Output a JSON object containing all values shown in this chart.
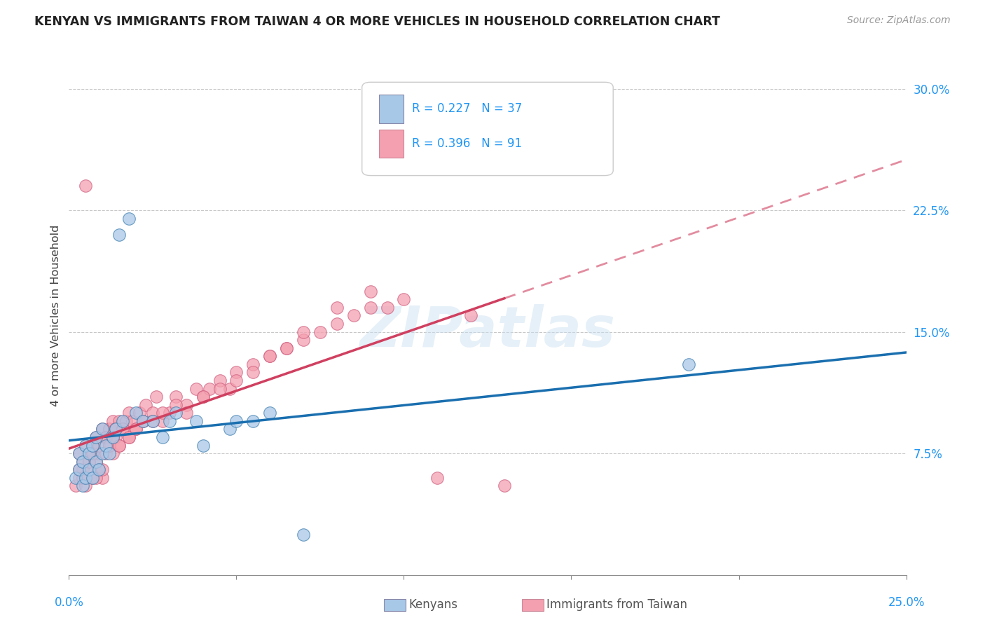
{
  "title": "KENYAN VS IMMIGRANTS FROM TAIWAN 4 OR MORE VEHICLES IN HOUSEHOLD CORRELATION CHART",
  "source": "Source: ZipAtlas.com",
  "ylabel": "4 or more Vehicles in Household",
  "ytick_labels": [
    "7.5%",
    "15.0%",
    "22.5%",
    "30.0%"
  ],
  "ytick_values": [
    0.075,
    0.15,
    0.225,
    0.3
  ],
  "xlim": [
    0.0,
    0.25
  ],
  "ylim": [
    0.0,
    0.32
  ],
  "legend_r_blue": "R = 0.227",
  "legend_n_blue": "N = 37",
  "legend_r_pink": "R = 0.396",
  "legend_n_pink": "N = 91",
  "blue_color": "#a8c8e8",
  "pink_color": "#f4a0b0",
  "trendline_blue_color": "#1a6faf",
  "trendline_pink_color": "#d04060",
  "kenyan_x": [
    0.002,
    0.003,
    0.003,
    0.004,
    0.004,
    0.005,
    0.005,
    0.006,
    0.006,
    0.007,
    0.007,
    0.008,
    0.008,
    0.009,
    0.01,
    0.01,
    0.011,
    0.012,
    0.013,
    0.014,
    0.015,
    0.016,
    0.018,
    0.02,
    0.022,
    0.025,
    0.028,
    0.03,
    0.032,
    0.038,
    0.04,
    0.048,
    0.05,
    0.055,
    0.06,
    0.185,
    0.07
  ],
  "kenyan_y": [
    0.06,
    0.065,
    0.075,
    0.055,
    0.07,
    0.06,
    0.08,
    0.065,
    0.075,
    0.06,
    0.08,
    0.07,
    0.085,
    0.065,
    0.075,
    0.09,
    0.08,
    0.075,
    0.085,
    0.09,
    0.21,
    0.095,
    0.22,
    0.1,
    0.095,
    0.095,
    0.085,
    0.095,
    0.1,
    0.095,
    0.08,
    0.09,
    0.095,
    0.095,
    0.1,
    0.13,
    0.025
  ],
  "taiwan_x": [
    0.002,
    0.003,
    0.003,
    0.004,
    0.004,
    0.005,
    0.005,
    0.006,
    0.006,
    0.007,
    0.007,
    0.008,
    0.008,
    0.009,
    0.009,
    0.01,
    0.01,
    0.011,
    0.011,
    0.012,
    0.012,
    0.013,
    0.013,
    0.014,
    0.014,
    0.015,
    0.015,
    0.016,
    0.017,
    0.018,
    0.018,
    0.019,
    0.02,
    0.021,
    0.022,
    0.023,
    0.025,
    0.026,
    0.028,
    0.03,
    0.032,
    0.035,
    0.038,
    0.04,
    0.042,
    0.045,
    0.048,
    0.05,
    0.055,
    0.06,
    0.065,
    0.07,
    0.075,
    0.08,
    0.085,
    0.09,
    0.095,
    0.1,
    0.11,
    0.12,
    0.003,
    0.004,
    0.005,
    0.006,
    0.007,
    0.008,
    0.009,
    0.01,
    0.011,
    0.012,
    0.013,
    0.014,
    0.015,
    0.016,
    0.018,
    0.02,
    0.022,
    0.025,
    0.028,
    0.032,
    0.035,
    0.04,
    0.045,
    0.05,
    0.055,
    0.06,
    0.065,
    0.07,
    0.08,
    0.09,
    0.13
  ],
  "taiwan_y": [
    0.055,
    0.06,
    0.075,
    0.065,
    0.07,
    0.055,
    0.08,
    0.065,
    0.075,
    0.06,
    0.08,
    0.07,
    0.085,
    0.065,
    0.075,
    0.06,
    0.09,
    0.075,
    0.085,
    0.08,
    0.09,
    0.075,
    0.095,
    0.085,
    0.09,
    0.08,
    0.095,
    0.09,
    0.095,
    0.085,
    0.1,
    0.095,
    0.09,
    0.1,
    0.095,
    0.105,
    0.1,
    0.11,
    0.095,
    0.1,
    0.11,
    0.105,
    0.115,
    0.11,
    0.115,
    0.12,
    0.115,
    0.125,
    0.13,
    0.135,
    0.14,
    0.145,
    0.15,
    0.155,
    0.16,
    0.165,
    0.165,
    0.17,
    0.06,
    0.16,
    0.065,
    0.06,
    0.24,
    0.07,
    0.075,
    0.06,
    0.08,
    0.065,
    0.085,
    0.08,
    0.085,
    0.09,
    0.08,
    0.09,
    0.085,
    0.09,
    0.095,
    0.095,
    0.1,
    0.105,
    0.1,
    0.11,
    0.115,
    0.12,
    0.125,
    0.135,
    0.14,
    0.15,
    0.165,
    0.175,
    0.055
  ]
}
